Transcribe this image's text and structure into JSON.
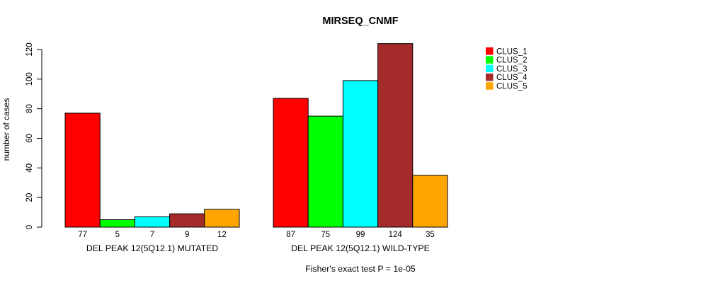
{
  "chart_data": {
    "type": "bar",
    "title": "MIRSEQ_CNMF",
    "ylabel": "number of cases",
    "xlabel": "",
    "ylim": [
      0,
      120
    ],
    "yticks": [
      0,
      20,
      40,
      60,
      80,
      100,
      120
    ],
    "grid": false,
    "show_values_under_bars": true,
    "groups": [
      {
        "label": "DEL PEAK 12(5Q12.1) MUTATED",
        "values": [
          77,
          5,
          7,
          9,
          12
        ]
      },
      {
        "label": "DEL PEAK 12(5Q12.1) WILD-TYPE",
        "values": [
          87,
          75,
          99,
          124,
          35
        ]
      }
    ],
    "series_names": [
      "CLUS_1",
      "CLUS_2",
      "CLUS_3",
      "CLUS_4",
      "CLUS_5"
    ],
    "colors": [
      "#FF0000",
      "#00FF00",
      "#00FFFF",
      "#A52A2A",
      "#FFA500"
    ],
    "legend_position": "top-right",
    "annotation": "Fisher's exact test P = 1e-05"
  }
}
